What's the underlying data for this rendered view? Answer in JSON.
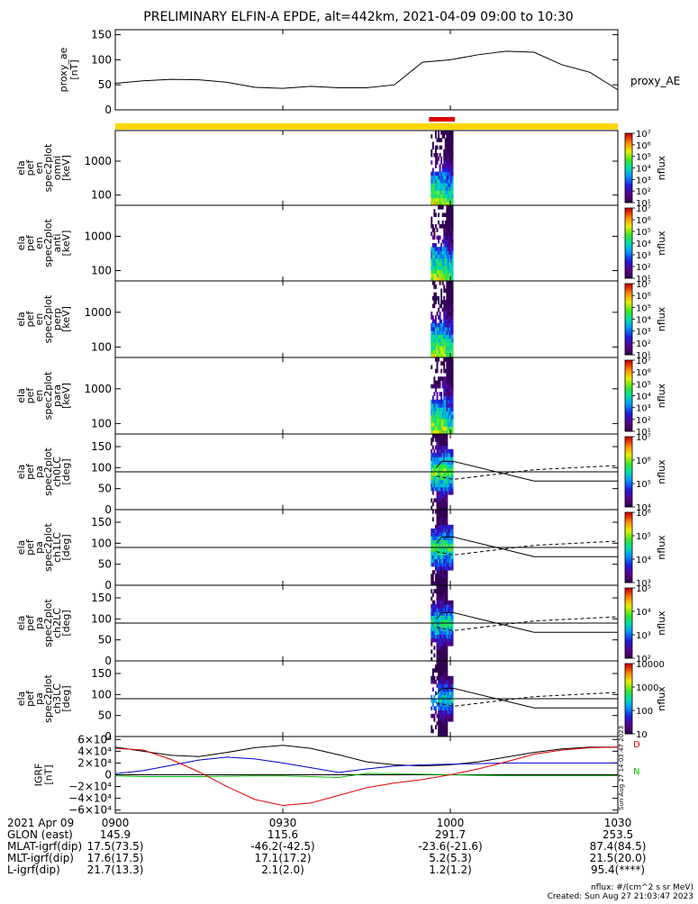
{
  "title": "PRELIMINARY ELFIN-A EPDE, alt=442km, 2021-04-09 09:00 to 10:30",
  "colors": {
    "ae_line": "#000000",
    "state_bar": "#ffd700",
    "science_marker": "#dd0000",
    "igrf_d": "#000000",
    "igrf_z": "#e00000",
    "igrf_east": "#0000cc",
    "igrf_n": "#00bb00"
  },
  "chart_data": [
    {
      "type": "line",
      "id": "proxy_ae",
      "ylabel_lines": [
        "proxy_ae",
        "[nT]"
      ],
      "legend": "proxy_AE",
      "ylim": [
        0,
        160
      ],
      "yticks": [
        "0",
        "50",
        "100",
        "150"
      ],
      "x": [
        0,
        5,
        10,
        15,
        20,
        25,
        30,
        35,
        40,
        45,
        50,
        55,
        60,
        65,
        70,
        75,
        80,
        85,
        90
      ],
      "values": [
        53,
        58,
        61,
        60,
        55,
        45,
        43,
        47,
        44,
        44,
        50,
        95,
        100,
        110,
        117,
        115,
        90,
        75,
        40
      ]
    },
    {
      "type": "heatmap",
      "id": "ela_pef_en_spec2plot_omni",
      "ylabel_lines": [
        "ela",
        "pef",
        "en",
        "spec2plot",
        "omni",
        "[keV]"
      ],
      "scale": "log",
      "yticks": [
        "100",
        "1000"
      ],
      "colorbar_label": "nflux",
      "colorbar_ticks": [
        "10¹",
        "10²",
        "10³",
        "10⁴",
        "10⁵",
        "10⁶",
        "10⁷"
      ],
      "data_interval_min": [
        56.5,
        60.5
      ]
    },
    {
      "type": "heatmap",
      "id": "ela_pef_en_spec2plot_anti",
      "ylabel_lines": [
        "ela",
        "pef",
        "en",
        "spec2plot",
        "anti",
        "[keV]"
      ],
      "scale": "log",
      "yticks": [
        "100",
        "1000"
      ],
      "colorbar_label": "nflux",
      "colorbar_ticks": [
        "10¹",
        "10²",
        "10³",
        "10⁴",
        "10⁵",
        "10⁶",
        "10⁷"
      ],
      "data_interval_min": [
        56.5,
        60.5
      ]
    },
    {
      "type": "heatmap",
      "id": "ela_pef_en_spec2plot_perp",
      "ylabel_lines": [
        "ela",
        "pef",
        "en",
        "spec2plot",
        "perp",
        "[keV]"
      ],
      "scale": "log",
      "yticks": [
        "100",
        "1000"
      ],
      "colorbar_label": "nflux",
      "colorbar_ticks": [
        "10¹",
        "10²",
        "10³",
        "10⁴",
        "10⁵",
        "10⁶",
        "10⁷"
      ],
      "data_interval_min": [
        56.5,
        60.5
      ]
    },
    {
      "type": "heatmap",
      "id": "ela_pef_en_spec2plot_para",
      "ylabel_lines": [
        "ela",
        "pef",
        "en",
        "spec2plot",
        "para",
        "[keV]"
      ],
      "scale": "log",
      "yticks": [
        "100",
        "1000"
      ],
      "colorbar_label": "nflux",
      "colorbar_ticks": [
        "10¹",
        "10²",
        "10³",
        "10⁴",
        "10⁵",
        "10⁶",
        "10⁷"
      ],
      "data_interval_min": [
        56.5,
        60.5
      ]
    },
    {
      "type": "heatmap",
      "id": "ela_pef_pa_spec2plot_ch0LC",
      "ylabel_lines": [
        "ela",
        "pef",
        "pa",
        "spec2plot",
        "ch0LC",
        "[deg]"
      ],
      "ylim": [
        0,
        180
      ],
      "yticks": [
        "0",
        "50",
        "100",
        "150"
      ],
      "colorbar_label": "nflux",
      "colorbar_ticks": [
        "10⁴",
        "10⁵",
        "10⁶",
        "10⁷"
      ],
      "data_interval_min": [
        56.5,
        60.5
      ]
    },
    {
      "type": "heatmap",
      "id": "ela_pef_pa_spec2plot_ch1LC",
      "ylabel_lines": [
        "ela",
        "pef",
        "pa",
        "spec2plot",
        "ch1LC",
        "[deg]"
      ],
      "ylim": [
        0,
        180
      ],
      "yticks": [
        "0",
        "50",
        "100",
        "150"
      ],
      "colorbar_label": "nflux",
      "colorbar_ticks": [
        "10³",
        "10⁴",
        "10⁵",
        "10⁶"
      ],
      "data_interval_min": [
        56.5,
        60.5
      ]
    },
    {
      "type": "heatmap",
      "id": "ela_pef_pa_spec2plot_ch2LC",
      "ylabel_lines": [
        "ela",
        "pef",
        "pa",
        "spec2plot",
        "ch2LC",
        "[deg]"
      ],
      "ylim": [
        0,
        180
      ],
      "yticks": [
        "0",
        "50",
        "100",
        "150"
      ],
      "colorbar_label": "nflux",
      "colorbar_ticks": [
        "10²",
        "10³",
        "10⁴",
        "10⁵"
      ],
      "data_interval_min": [
        56.5,
        60.5
      ]
    },
    {
      "type": "heatmap",
      "id": "ela_pef_pa_spec2plot_ch3LC",
      "ylabel_lines": [
        "ela",
        "pef",
        "pa",
        "spec2plot",
        "ch3LC",
        "[deg]"
      ],
      "ylim": [
        0,
        180
      ],
      "yticks": [
        "0",
        "50",
        "100",
        "150"
      ],
      "colorbar_label": "nflux",
      "colorbar_ticks": [
        "10",
        "100",
        "1000",
        "10000"
      ],
      "data_interval_min": [
        56.5,
        60.5
      ]
    },
    {
      "type": "line",
      "id": "igrf",
      "ylabel_lines": [
        "IGRF",
        "[nT]"
      ],
      "ylim": [
        -65000,
        65000
      ],
      "yticks": [
        "−6×10⁴",
        "−4×10⁴",
        "−2×10⁴",
        "0",
        "2×10⁴",
        "4×10⁴",
        "6×10⁴"
      ],
      "right_labels": [
        "D",
        "N"
      ],
      "stamp": "Sun Aug 27 14:03:47 2023",
      "x": [
        0,
        5,
        10,
        15,
        20,
        25,
        30,
        35,
        40,
        45,
        50,
        55,
        60,
        65,
        70,
        75,
        80,
        85,
        90
      ],
      "series": [
        {
          "values": [
            47000,
            40000,
            33000,
            31000,
            38000,
            46000,
            50000,
            45000,
            34000,
            22000,
            17000,
            15000,
            17000,
            22000,
            30000,
            38000,
            44000,
            47000,
            47000
          ]
        },
        {
          "values": [
            2000,
            7000,
            16000,
            25000,
            30000,
            27000,
            20000,
            12000,
            4000,
            10000,
            15000,
            17000,
            18000,
            19000,
            20000,
            20000,
            20000,
            20000,
            20000
          ]
        },
        {
          "values": [
            -2000,
            -3000,
            -3000,
            -3000,
            -2500,
            -2000,
            -2000,
            -3000,
            -4500,
            2500,
            2000,
            1000,
            0,
            -1000,
            -1500,
            -1500,
            -1500,
            -1500,
            -1500
          ]
        },
        {
          "values": [
            45000,
            42000,
            26000,
            5000,
            -20000,
            -42000,
            -52000,
            -48000,
            -35000,
            -22000,
            -14000,
            -8000,
            0,
            10000,
            22000,
            35000,
            42000,
            46000,
            47000
          ]
        }
      ]
    }
  ],
  "x_axis": {
    "ticks": [
      {
        "minute": 0,
        "label": "0900"
      },
      {
        "minute": 30,
        "label": "0930"
      },
      {
        "minute": 60,
        "label": "1000"
      },
      {
        "minute": 90,
        "label": "1030"
      }
    ],
    "row_labels": [
      "2021 Apr 09",
      "GLON (east)",
      "MLAT-igrf(dip)",
      "MLT-igrf(dip)",
      "L-igrf(dip)"
    ],
    "rows": [
      [
        "145.9",
        "115.6",
        "291.7",
        "253.5"
      ],
      [
        "17.5(73.5)",
        "-46.2(-42.5)",
        "-23.6(-21.6)",
        "87.4(84.5)"
      ],
      [
        "17.6(17.5)",
        "17.1(17.2)",
        "5.2(5.3)",
        "21.5(20.0)"
      ],
      [
        "21.7(13.3)",
        "2.1(2.0)",
        "1.2(1.2)",
        "95.4(****)"
      ]
    ]
  },
  "footer": {
    "units": "nflux: #/(cm^2 s sr MeV)",
    "created": "Created: Sun Aug 27 21:03:47 2023"
  }
}
